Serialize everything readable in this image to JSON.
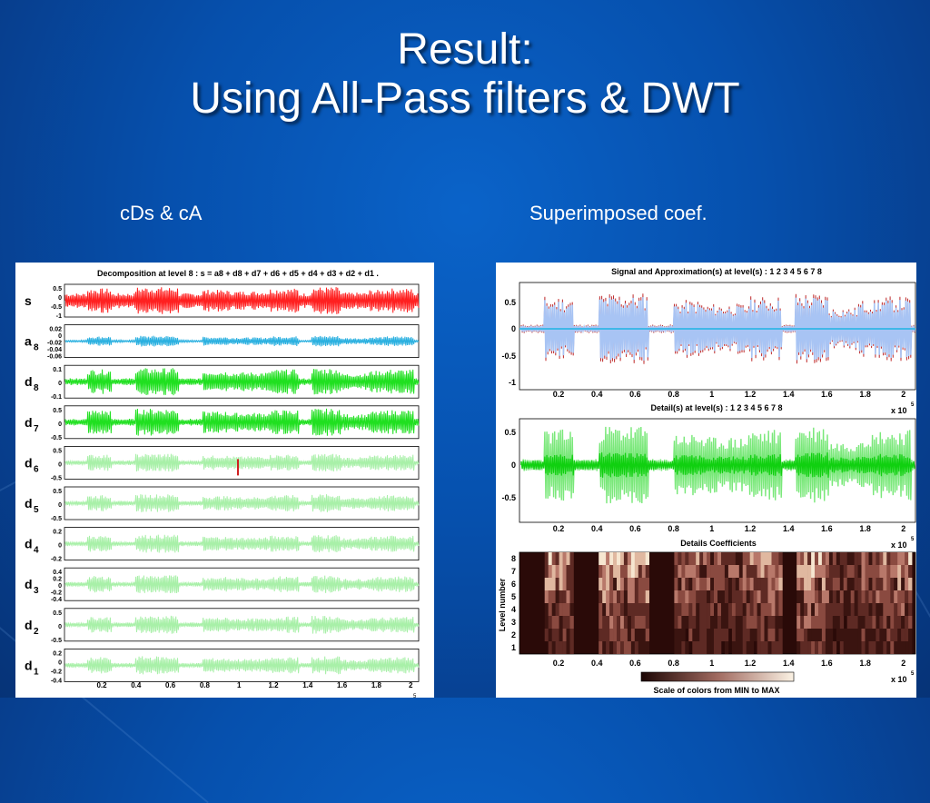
{
  "slide": {
    "title_line1": "Result:",
    "title_line2": "Using All-Pass filters & DWT",
    "caption_left": "cDs & cA",
    "caption_right": "Superimposed coef."
  },
  "colors": {
    "background": "#0650ad",
    "signal": "#ff2020",
    "approx": "#2ab0e0",
    "detail": "#20e020",
    "detail_light": "#a8f0a8",
    "overlay_blue": "#a8c4f4"
  },
  "left_figure": {
    "title": "Decomposition at level 8 : s = a8 + d8 + d7 + d6 + d5 + d4 + d3 + d2 + d1 .",
    "rows": [
      {
        "label": "s",
        "sub": "",
        "ticks": [
          "0.5",
          "0",
          "-0.5",
          "-1"
        ]
      },
      {
        "label": "a",
        "sub": "8",
        "ticks": [
          "0.02",
          "0",
          "-0.02",
          "-0.04",
          "-0.06"
        ]
      },
      {
        "label": "d",
        "sub": "8",
        "ticks": [
          "0.1",
          "0",
          "-0.1"
        ]
      },
      {
        "label": "d",
        "sub": "7",
        "ticks": [
          "0.5",
          "0",
          "-0.5"
        ]
      },
      {
        "label": "d",
        "sub": "6",
        "ticks": [
          "0.5",
          "0",
          "-0.5"
        ]
      },
      {
        "label": "d",
        "sub": "5",
        "ticks": [
          "0.5",
          "0",
          "-0.5"
        ]
      },
      {
        "label": "d",
        "sub": "4",
        "ticks": [
          "0.2",
          "0",
          "-0.2"
        ]
      },
      {
        "label": "d",
        "sub": "3",
        "ticks": [
          "0.4",
          "0.2",
          "0",
          "-0.2",
          "-0.4"
        ]
      },
      {
        "label": "d",
        "sub": "2",
        "ticks": [
          "0.5",
          "0",
          "-0.5"
        ]
      },
      {
        "label": "d",
        "sub": "1",
        "ticks": [
          "0.2",
          "0",
          "-0.2",
          "-0.4"
        ]
      }
    ],
    "x_ticks": [
      "0.2",
      "0.4",
      "0.6",
      "0.8",
      "1",
      "1.2",
      "1.4",
      "1.6",
      "1.8",
      "2"
    ],
    "x_exponent": "5"
  },
  "right_figure": {
    "top_title": "Signal and Approximation(s) at level(s) : 1 2 3 4 5 6 7 8",
    "top_y_ticks": [
      "0.5",
      "0",
      "-0.5",
      "-1"
    ],
    "mid_title": "Detail(s) at level(s) : 1 2 3 4 5 6 7 8",
    "mid_y_ticks": [
      "0.5",
      "0",
      "-0.5"
    ],
    "bottom_title": "Details Coefficients",
    "bottom_ylabel": "Level number",
    "bottom_y_ticks": [
      "8",
      "7",
      "6",
      "5",
      "4",
      "3",
      "2",
      "1"
    ],
    "x_ticks": [
      "0.2",
      "0.4",
      "0.6",
      "0.8",
      "1",
      "1.2",
      "1.4",
      "1.6",
      "1.8",
      "2"
    ],
    "x_multiplier": "x 10",
    "x_exponent": "5",
    "colorbar_label": "Scale of colors from MIN to MAX"
  }
}
